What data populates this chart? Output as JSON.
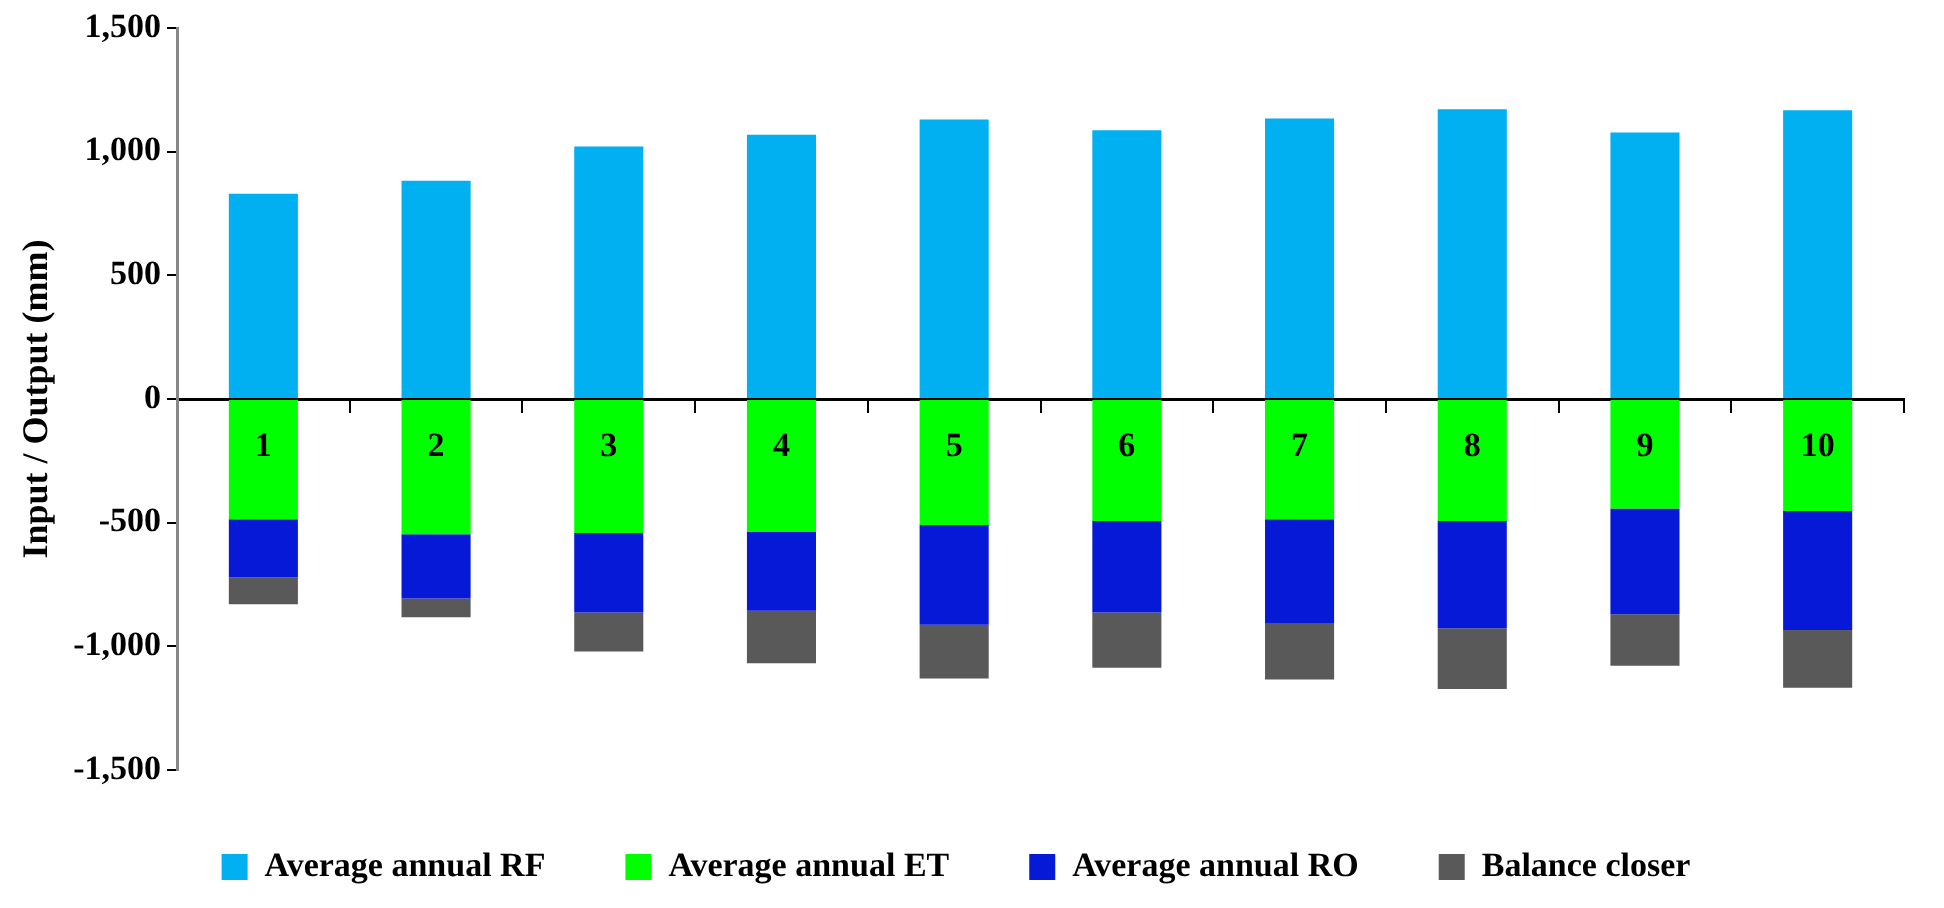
{
  "chart_data": {
    "type": "bar",
    "stacked": true,
    "ylabel": "Input / Output (mm)",
    "categories": [
      "1",
      "2",
      "3",
      "4",
      "5",
      "6",
      "7",
      "8",
      "9",
      "10"
    ],
    "series": [
      {
        "name": "Average annual RF",
        "color": "#00b0f0",
        "values": [
          830,
          882,
          1021,
          1068,
          1130,
          1087,
          1134,
          1172,
          1078,
          1167
        ]
      },
      {
        "name": "Average annual ET",
        "color": "#00ff00",
        "values": [
          -486,
          -547,
          -542,
          -538,
          -509,
          -493,
          -486,
          -493,
          -443,
          -453
        ]
      },
      {
        "name": "Average annual RO",
        "color": "#0619d6",
        "values": [
          -236,
          -260,
          -321,
          -318,
          -404,
          -370,
          -420,
          -434,
          -427,
          -481
        ]
      },
      {
        "name": "Balance closer",
        "color": "#595959",
        "values": [
          -108,
          -75,
          -158,
          -212,
          -217,
          -224,
          -228,
          -245,
          -208,
          -233
        ]
      }
    ],
    "ylim": [
      -1500,
      1500
    ],
    "yticks": [
      {
        "value": -1500,
        "label": "-1,500"
      },
      {
        "value": -1000,
        "label": "-1,000"
      },
      -500,
      0,
      500,
      {
        "value": 1000,
        "label": "1,000"
      },
      {
        "value": 1500,
        "label": "1,500"
      }
    ],
    "grid": false,
    "legend": "bottom"
  }
}
